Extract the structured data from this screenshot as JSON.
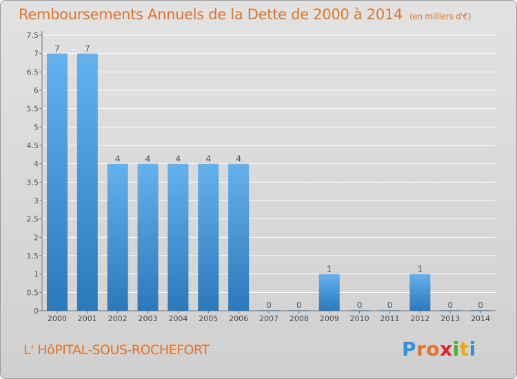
{
  "title": "Remboursements Annuels de la Dette de 2000 à 2014",
  "unit": "(en milliers d'€)",
  "commune": "L' HôPITAL-SOUS-ROCHEFORT",
  "brand": {
    "letters": [
      "P",
      "r",
      "o",
      "x",
      "i",
      "t",
      "i"
    ],
    "colors": [
      "#2f8fd8",
      "#e0742a",
      "#e0742a",
      "#e8202a",
      "#4caf28",
      "#e6a919",
      "#2f8fd8"
    ]
  },
  "colors": {
    "bar_top": "#64b1ee",
    "bar_bottom": "#2b79b9",
    "title": "#e0742a"
  },
  "chart_data": {
    "type": "bar",
    "categories": [
      "2000",
      "2001",
      "2002",
      "2003",
      "2004",
      "2005",
      "2006",
      "2007",
      "2008",
      "2009",
      "2010",
      "2011",
      "2012",
      "2013",
      "2014"
    ],
    "values": [
      7,
      7,
      4,
      4,
      4,
      4,
      4,
      0,
      0,
      1,
      0,
      0,
      1,
      0,
      0
    ],
    "data_labels": [
      "7",
      "7",
      "4",
      "4",
      "4",
      "4",
      "4",
      "0",
      "0",
      "1",
      "0",
      "0",
      "1",
      "0",
      "0"
    ],
    "yticks": [
      "0",
      "0.5",
      "1",
      "1.5",
      "2",
      "2.5",
      "3",
      "3.5",
      "4",
      "4.5",
      "5",
      "5.5",
      "6",
      "6.5",
      "7",
      "7.5"
    ],
    "ylim": [
      0,
      7.5
    ],
    "ytick_step": 0.5,
    "title": "Remboursements Annuels de la Dette de 2000 à 2014",
    "ylabel": "",
    "xlabel": "",
    "grid": true
  }
}
